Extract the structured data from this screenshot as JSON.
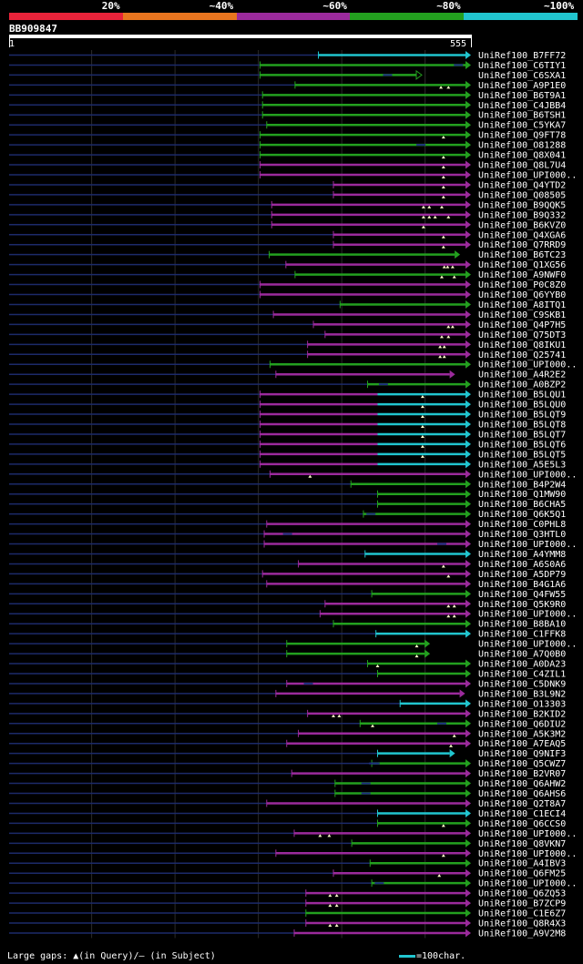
{
  "chart_data": {
    "type": "blast-alignment-overview",
    "query": {
      "id": "BB909847",
      "start": 1,
      "end": 555
    },
    "identity_scale": [
      {
        "label": "20%",
        "color": "#e8233a"
      },
      {
        "label": "~40%",
        "color": "#e8751f"
      },
      {
        "label": "~60%",
        "color": "#9b2a9c"
      },
      {
        "label": "~80%",
        "color": "#23a01f"
      },
      {
        "label": "~100%",
        "color": "#21c5cf"
      }
    ],
    "hits": [
      {
        "name": "UniRef100_B7FF72",
        "start": 372,
        "end": 555,
        "cls": 4,
        "arrow": "filled"
      },
      {
        "name": "UniRef100_C6TIY1",
        "start": 302,
        "end": 555,
        "cls": 3,
        "arrow": "filled",
        "gaps_q": [],
        "gaps_s": [
          540
        ]
      },
      {
        "name": "UniRef100_C6SXA1",
        "start": 302,
        "end": 496,
        "cls": 3,
        "arrow": "open",
        "gaps_s": [
          455
        ]
      },
      {
        "name": "UniRef100_A9P1E0",
        "start": 344,
        "end": 555,
        "cls": 3,
        "arrow": "filled",
        "gaps_q": [
          519,
          528
        ]
      },
      {
        "name": "UniRef100_B6T9A1",
        "start": 305,
        "end": 555,
        "cls": 3,
        "arrow": "filled"
      },
      {
        "name": "UniRef100_C4JBB4",
        "start": 305,
        "end": 555,
        "cls": 3,
        "arrow": "filled"
      },
      {
        "name": "UniRef100_B6TSH1",
        "start": 305,
        "end": 555,
        "cls": 3,
        "arrow": "filled"
      },
      {
        "name": "UniRef100_C5YKA7",
        "start": 310,
        "end": 555,
        "cls": 3,
        "arrow": "filled"
      },
      {
        "name": "UniRef100_Q9FT78",
        "start": 302,
        "end": 555,
        "cls": 3,
        "arrow": "filled",
        "gaps_q": [
          522
        ]
      },
      {
        "name": "UniRef100_O81288",
        "start": 302,
        "end": 555,
        "cls": 3,
        "arrow": "filled",
        "gaps_s": [
          495
        ]
      },
      {
        "name": "UniRef100_Q8X041",
        "start": 302,
        "end": 555,
        "cls": 3,
        "arrow": "filled",
        "gaps_q": [
          522
        ]
      },
      {
        "name": "UniRef100_Q8L7U4",
        "start": 302,
        "end": 555,
        "cls": 2,
        "arrow": "filled",
        "gaps_q": [
          522
        ]
      },
      {
        "name": "UniRef100_UPI000..",
        "start": 302,
        "end": 555,
        "cls": 2,
        "arrow": "filled",
        "gaps_q": [
          522
        ]
      },
      {
        "name": "UniRef100_Q4YTD2",
        "start": 390,
        "end": 555,
        "cls": 2,
        "arrow": "filled",
        "gaps_q": [
          522
        ]
      },
      {
        "name": "UniRef100_Q08505",
        "start": 390,
        "end": 555,
        "cls": 2,
        "arrow": "filled",
        "gaps_q": [
          522
        ]
      },
      {
        "name": "UniRef100_B9QQK5",
        "start": 316,
        "end": 555,
        "cls": 2,
        "arrow": "filled",
        "gaps_q": [
          498,
          505,
          520
        ]
      },
      {
        "name": "UniRef100_B9Q332",
        "start": 316,
        "end": 555,
        "cls": 2,
        "arrow": "filled",
        "gaps_q": [
          498,
          505,
          512,
          528
        ]
      },
      {
        "name": "UniRef100_B6KVZ0",
        "start": 316,
        "end": 555,
        "cls": 2,
        "arrow": "filled",
        "gaps_q": [
          498
        ]
      },
      {
        "name": "UniRef100_Q4XGA6",
        "start": 390,
        "end": 555,
        "cls": 2,
        "arrow": "filled",
        "gaps_q": [
          522
        ]
      },
      {
        "name": "UniRef100_Q7RRD9",
        "start": 390,
        "end": 555,
        "cls": 2,
        "arrow": "filled",
        "gaps_q": [
          522
        ]
      },
      {
        "name": "UniRef100_B6TC23",
        "start": 313,
        "end": 542,
        "cls": 3,
        "arrow": "filled"
      },
      {
        "name": "UniRef100_Q1XG56",
        "start": 333,
        "end": 555,
        "cls": 2,
        "arrow": "filled",
        "gaps_q": [
          523,
          527,
          533
        ]
      },
      {
        "name": "UniRef100_A9NWF0",
        "start": 344,
        "end": 555,
        "cls": 3,
        "arrow": "filled",
        "gaps_q": [
          520,
          535
        ]
      },
      {
        "name": "UniRef100_P0C8Z0",
        "start": 302,
        "end": 555,
        "cls": 2,
        "arrow": "filled"
      },
      {
        "name": "UniRef100_Q6YYB0",
        "start": 302,
        "end": 555,
        "cls": 2,
        "arrow": "filled"
      },
      {
        "name": "UniRef100_A8ITQ1",
        "start": 398,
        "end": 555,
        "cls": 3,
        "arrow": "filled"
      },
      {
        "name": "UniRef100_C9SKB1",
        "start": 318,
        "end": 555,
        "cls": 2,
        "arrow": "filled"
      },
      {
        "name": "UniRef100_Q4P7H5",
        "start": 366,
        "end": 555,
        "cls": 2,
        "arrow": "filled",
        "gaps_q": [
          528,
          533
        ]
      },
      {
        "name": "UniRef100_Q75DT3",
        "start": 380,
        "end": 555,
        "cls": 2,
        "arrow": "filled",
        "gaps_q": [
          520,
          528
        ]
      },
      {
        "name": "UniRef100_Q8IKU1",
        "start": 359,
        "end": 555,
        "cls": 2,
        "arrow": "filled",
        "gaps_q": [
          518,
          523
        ]
      },
      {
        "name": "UniRef100_Q25741",
        "start": 359,
        "end": 555,
        "cls": 2,
        "arrow": "filled",
        "gaps_q": [
          518,
          523
        ]
      },
      {
        "name": "UniRef100_UPI000..",
        "start": 314,
        "end": 555,
        "cls": 3,
        "arrow": "filled"
      },
      {
        "name": "UniRef100_A4R2E2",
        "start": 321,
        "end": 536,
        "cls": 2,
        "arrow": "filled"
      },
      {
        "name": "UniRef100_A0BZP2",
        "start": 431,
        "end": 555,
        "cls": 3,
        "arrow": "filled",
        "gaps_s": [
          450
        ]
      },
      {
        "name": "UniRef100_B5LQU1",
        "start": 302,
        "end": 555,
        "cls": 2,
        "split": 443,
        "cls2": 4,
        "arrow": "filled",
        "gaps_q": [
          497
        ]
      },
      {
        "name": "UniRef100_B5LQU0",
        "start": 302,
        "end": 555,
        "cls": 2,
        "split": 443,
        "cls2": 4,
        "arrow": "filled",
        "gaps_q": [
          497
        ]
      },
      {
        "name": "UniRef100_B5LQT9",
        "start": 302,
        "end": 555,
        "cls": 2,
        "split": 443,
        "cls2": 4,
        "arrow": "filled",
        "gaps_q": [
          497
        ]
      },
      {
        "name": "UniRef100_B5LQT8",
        "start": 302,
        "end": 555,
        "cls": 2,
        "split": 443,
        "cls2": 4,
        "arrow": "filled",
        "gaps_q": [
          497
        ]
      },
      {
        "name": "UniRef100_B5LQT7",
        "start": 302,
        "end": 555,
        "cls": 2,
        "split": 443,
        "cls2": 4,
        "arrow": "filled",
        "gaps_q": [
          497
        ]
      },
      {
        "name": "UniRef100_B5LQT6",
        "start": 302,
        "end": 555,
        "cls": 2,
        "split": 443,
        "cls2": 4,
        "arrow": "filled",
        "gaps_q": [
          497
        ]
      },
      {
        "name": "UniRef100_B5LQT5",
        "start": 302,
        "end": 555,
        "cls": 2,
        "split": 443,
        "cls2": 4,
        "arrow": "filled",
        "gaps_q": [
          497
        ]
      },
      {
        "name": "UniRef100_A5E5L3",
        "start": 302,
        "end": 555,
        "cls": 2,
        "split": 443,
        "cls2": 4,
        "arrow": "filled"
      },
      {
        "name": "UniRef100_UPI000..",
        "start": 314,
        "end": 555,
        "cls": 2,
        "arrow": "filled",
        "gaps_q": [
          362
        ]
      },
      {
        "name": "UniRef100_B4P2W4",
        "start": 411,
        "end": 555,
        "cls": 3,
        "arrow": "filled"
      },
      {
        "name": "UniRef100_Q1MW90",
        "start": 443,
        "end": 555,
        "cls": 3,
        "arrow": "filled"
      },
      {
        "name": "UniRef100_B6CHA5",
        "start": 443,
        "end": 555,
        "cls": 3,
        "arrow": "filled"
      },
      {
        "name": "UniRef100_Q6K5Q1",
        "start": 426,
        "end": 555,
        "cls": 3,
        "arrow": "filled",
        "gaps_s": [
          435
        ]
      },
      {
        "name": "UniRef100_C0PHL8",
        "start": 310,
        "end": 555,
        "cls": 2,
        "arrow": "filled"
      },
      {
        "name": "UniRef100_Q3HTL0",
        "start": 307,
        "end": 555,
        "cls": 2,
        "arrow": "filled",
        "gaps_s": [
          335
        ]
      },
      {
        "name": "UniRef100_UPI000..",
        "start": 307,
        "end": 555,
        "cls": 2,
        "arrow": "filled",
        "gaps_s": [
          520
        ]
      },
      {
        "name": "UniRef100_A4YMM8",
        "start": 428,
        "end": 555,
        "cls": 4,
        "arrow": "filled"
      },
      {
        "name": "UniRef100_A6S0A6",
        "start": 348,
        "end": 555,
        "cls": 2,
        "arrow": "filled",
        "gaps_q": [
          522
        ]
      },
      {
        "name": "UniRef100_A5DP79",
        "start": 305,
        "end": 555,
        "cls": 2,
        "arrow": "filled",
        "gaps_q": [
          528
        ]
      },
      {
        "name": "UniRef100_B4G1A6",
        "start": 310,
        "end": 555,
        "cls": 2,
        "arrow": "filled"
      },
      {
        "name": "UniRef100_Q4FW55",
        "start": 436,
        "end": 555,
        "cls": 3,
        "arrow": "filled"
      },
      {
        "name": "UniRef100_Q5K9R0",
        "start": 380,
        "end": 555,
        "cls": 2,
        "arrow": "filled",
        "gaps_q": [
          528,
          535
        ]
      },
      {
        "name": "UniRef100_UPI000..",
        "start": 374,
        "end": 555,
        "cls": 2,
        "arrow": "filled",
        "gaps_q": [
          528,
          535
        ]
      },
      {
        "name": "UniRef100_B8BA10",
        "start": 390,
        "end": 555,
        "cls": 3,
        "arrow": "filled"
      },
      {
        "name": "UniRef100_C1FFK8",
        "start": 441,
        "end": 555,
        "cls": 4,
        "arrow": "filled"
      },
      {
        "name": "UniRef100_UPI000..",
        "start": 334,
        "end": 506,
        "cls": 3,
        "arrow": "filled",
        "gaps_q": [
          490
        ]
      },
      {
        "name": "UniRef100_A7Q0B0",
        "start": 334,
        "end": 506,
        "cls": 3,
        "arrow": "filled",
        "gaps_q": [
          490
        ]
      },
      {
        "name": "UniRef100_A0DA23",
        "start": 431,
        "end": 555,
        "cls": 3,
        "arrow": "filled",
        "gaps_q": [
          443
        ]
      },
      {
        "name": "UniRef100_C4ZIL1",
        "start": 443,
        "end": 555,
        "cls": 3,
        "arrow": "filled"
      },
      {
        "name": "UniRef100_C5DNK9",
        "start": 334,
        "end": 555,
        "cls": 2,
        "arrow": "filled",
        "gaps_s": [
          360
        ]
      },
      {
        "name": "UniRef100_B3L9N2",
        "start": 321,
        "end": 548,
        "cls": 2,
        "arrow": "filled"
      },
      {
        "name": "UniRef100_O13303",
        "start": 470,
        "end": 555,
        "cls": 4,
        "arrow": "filled"
      },
      {
        "name": "UniRef100_B2KID2",
        "start": 359,
        "end": 555,
        "cls": 2,
        "arrow": "filled",
        "gaps_q": [
          390,
          397
        ]
      },
      {
        "name": "UniRef100_Q6DIU2",
        "start": 422,
        "end": 555,
        "cls": 3,
        "arrow": "filled",
        "gaps_q": [
          437
        ],
        "gaps_s": [
          520
        ]
      },
      {
        "name": "UniRef100_A5K3M2",
        "start": 348,
        "end": 555,
        "cls": 2,
        "arrow": "filled",
        "gaps_q": [
          535
        ]
      },
      {
        "name": "UniRef100_A7EAQ5",
        "start": 334,
        "end": 555,
        "cls": 2,
        "arrow": "filled",
        "gaps_q": [
          531
        ]
      },
      {
        "name": "UniRef100_Q9NIF3",
        "start": 443,
        "end": 536,
        "cls": 4,
        "arrow": "filled"
      },
      {
        "name": "UniRef100_Q5CWZ7",
        "start": 436,
        "end": 555,
        "cls": 3,
        "arrow": "filled",
        "gaps_s": [
          438,
          440
        ]
      },
      {
        "name": "UniRef100_B2VR07",
        "start": 340,
        "end": 555,
        "cls": 2,
        "arrow": "filled"
      },
      {
        "name": "UniRef100_Q6AHW2",
        "start": 392,
        "end": 555,
        "cls": 3,
        "arrow": "filled",
        "gaps_s": [
          429
        ]
      },
      {
        "name": "UniRef100_Q6AHS6",
        "start": 392,
        "end": 555,
        "cls": 3,
        "arrow": "filled",
        "gaps_s": [
          429
        ]
      },
      {
        "name": "UniRef100_Q2T8A7",
        "start": 310,
        "end": 555,
        "cls": 2,
        "arrow": "filled"
      },
      {
        "name": "UniRef100_C1ECI4",
        "start": 443,
        "end": 555,
        "cls": 4,
        "arrow": "filled"
      },
      {
        "name": "UniRef100_Q6CCS0",
        "start": 443,
        "end": 555,
        "cls": 3,
        "arrow": "filled",
        "gaps_q": [
          522
        ]
      },
      {
        "name": "UniRef100_UPI000..",
        "start": 343,
        "end": 555,
        "cls": 2,
        "arrow": "filled",
        "gaps_q": [
          374,
          385
        ]
      },
      {
        "name": "UniRef100_Q8VKN7",
        "start": 412,
        "end": 555,
        "cls": 3,
        "arrow": "filled"
      },
      {
        "name": "UniRef100_UPI000..",
        "start": 321,
        "end": 555,
        "cls": 2,
        "arrow": "filled",
        "gaps_q": [
          522
        ]
      },
      {
        "name": "UniRef100_A4IBV3",
        "start": 434,
        "end": 555,
        "cls": 3,
        "arrow": "filled"
      },
      {
        "name": "UniRef100_Q6FM25",
        "start": 390,
        "end": 555,
        "cls": 2,
        "arrow": "filled",
        "gaps_q": [
          517
        ]
      },
      {
        "name": "UniRef100_UPI000..",
        "start": 436,
        "end": 555,
        "cls": 3,
        "arrow": "filled",
        "gaps_s": [
          445
        ]
      },
      {
        "name": "UniRef100_Q6ZQ53",
        "start": 357,
        "end": 555,
        "cls": 2,
        "arrow": "filled",
        "gaps_q": [
          386,
          394
        ]
      },
      {
        "name": "UniRef100_B7ZCP9",
        "start": 357,
        "end": 555,
        "cls": 2,
        "arrow": "filled",
        "gaps_q": [
          386,
          394
        ]
      },
      {
        "name": "UniRef100_C1E6Z7",
        "start": 357,
        "end": 555,
        "cls": 3,
        "arrow": "filled"
      },
      {
        "name": "UniRef100_Q8R4X3",
        "start": 357,
        "end": 555,
        "cls": 2,
        "arrow": "filled",
        "gaps_q": [
          386,
          394
        ]
      },
      {
        "name": "UniRef100_A9V2M8",
        "start": 343,
        "end": 555,
        "cls": 2,
        "arrow": "filled"
      }
    ]
  },
  "footer": {
    "gaps_legend": "Large gaps: ▲(in Query)/– (in Subject)",
    "scale_label": "=100char."
  }
}
